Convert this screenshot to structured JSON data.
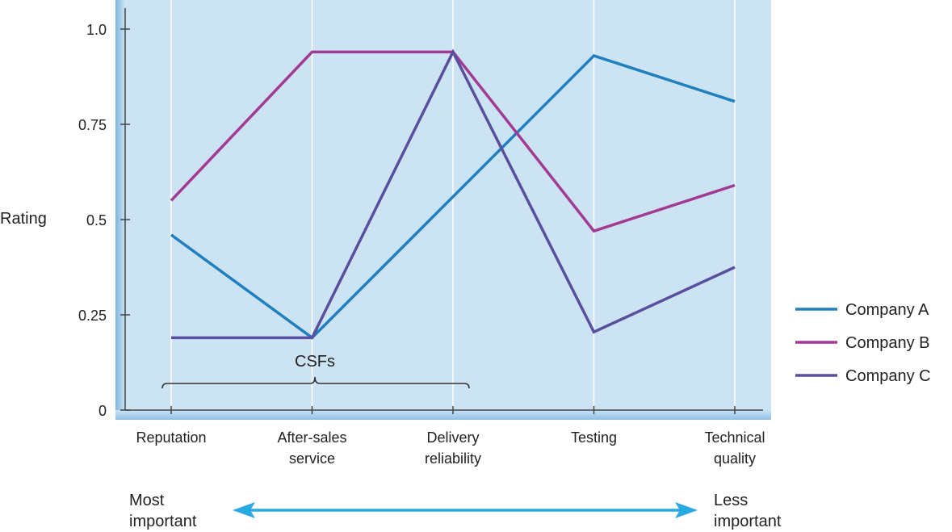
{
  "chart_data": {
    "type": "line",
    "ylabel": "Rating",
    "ylim": [
      0,
      1.0
    ],
    "y_ticks": [
      "1.0",
      "0.75",
      "0.5",
      "0.25",
      "0"
    ],
    "y_tick_values": [
      1.0,
      0.75,
      0.5,
      0.25,
      0
    ],
    "categories": [
      [
        "Reputation"
      ],
      [
        "After-sales",
        "service"
      ],
      [
        "Delivery",
        "reliability"
      ],
      [
        "Testing"
      ],
      [
        "Technical",
        "quality"
      ]
    ],
    "series": [
      {
        "name": "Company A",
        "color": "#1f7fbf",
        "values": [
          0.46,
          0.19,
          0.56,
          0.93,
          0.81
        ]
      },
      {
        "name": "Company B",
        "color": "#a23a93",
        "values": [
          0.55,
          0.94,
          0.94,
          0.47,
          0.59
        ]
      },
      {
        "name": "Company C",
        "color": "#5a4f9e",
        "values": [
          0.19,
          0.19,
          0.94,
          0.205,
          0.375
        ]
      }
    ],
    "grid": true,
    "legend_position": "right",
    "annotations": {
      "csf_label": "CSFs",
      "most_important": [
        "Most",
        "important"
      ],
      "less_important": [
        "Less",
        "important"
      ]
    },
    "colors": {
      "plot_background": "#cce3f4",
      "axis_shadow": "#a9cde9",
      "arrow": "#29a9e1"
    }
  }
}
